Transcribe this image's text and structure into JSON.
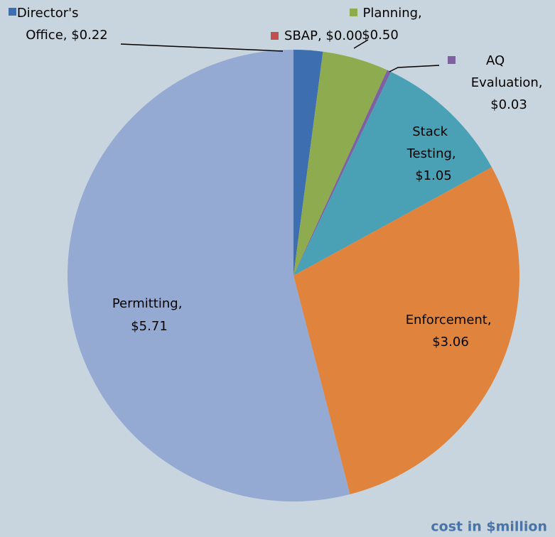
{
  "chart_data": {
    "type": "pie",
    "values": [
      0.22,
      0.0,
      0.5,
      0.03,
      1.05,
      3.06,
      5.71
    ],
    "value_labels": [
      "Director's Office, $0.22",
      "SBAP, $0.00",
      "Planning, $0.50",
      "AQ Evaluation, $0.03",
      "Stack Testing, $1.05",
      "Enforcement, $3.06",
      "Permitting, $5.71"
    ],
    "colors": [
      "#3d6fb0",
      "#c0504d",
      "#8eab50",
      "#7d61a0",
      "#4aa1b6",
      "#e0843d",
      "#95aad3"
    ],
    "note": "cost in $million"
  }
}
